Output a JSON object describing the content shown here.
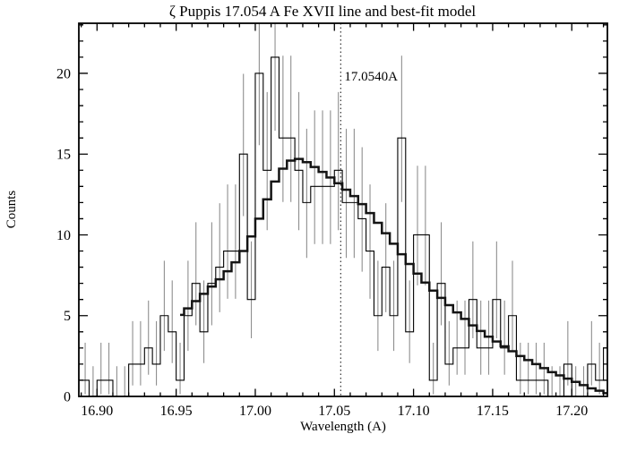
{
  "colors": {
    "background": "#ffffff",
    "axis": "#000000",
    "data_line": "#000000",
    "model_line": "#141414",
    "error_bar": "#8f8f8f",
    "reference_line": "#333333"
  },
  "chart_data": {
    "type": "bar",
    "subtype": "step-histogram-with-model-curve-and-error-bars",
    "title": "ζ Puppis 17.054 A Fe XVII line and best-fit model",
    "xlabel": "Wavelength (A)",
    "ylabel": "Counts",
    "annotation": "17.0540A",
    "rest_wavelength": 17.054,
    "xlim": [
      16.8885,
      17.2225
    ],
    "ylim": [
      0,
      23.1
    ],
    "x_major_ticks": [
      16.9,
      16.95,
      17.0,
      17.05,
      17.1,
      17.15,
      17.2
    ],
    "x_major_tick_labels": [
      "16.90",
      "16.95",
      "17.00",
      "17.05",
      "17.10",
      "17.15",
      "17.20"
    ],
    "x_minor_step": 0.01,
    "y_major_ticks": [
      0,
      5,
      10,
      15,
      20
    ],
    "y_major_tick_labels": [
      "0",
      "5",
      "10",
      "15",
      "20"
    ],
    "y_minor_step": 1,
    "grid": "off",
    "legend": "none",
    "bin_width": 0.005,
    "bins_start": 16.89,
    "counts": [
      1,
      0,
      1,
      1,
      0,
      0,
      2,
      2,
      3,
      2,
      5,
      4,
      1,
      5,
      7,
      4,
      7,
      8,
      9,
      9,
      15,
      6,
      20,
      14,
      21,
      16,
      16,
      14,
      12,
      13,
      13,
      13,
      14,
      12,
      12,
      11,
      9,
      5,
      8,
      5,
      16,
      4,
      10,
      10,
      1,
      7,
      2,
      3,
      3,
      6,
      3,
      3,
      6,
      3,
      5,
      1,
      1,
      1,
      1,
      0,
      0,
      2,
      0,
      0,
      2,
      1,
      3
    ],
    "error_bar_type": "gehrels-poisson",
    "model_start": 16.9525,
    "model_step": 0.005,
    "model_values": [
      5.05,
      5.45,
      5.9,
      6.35,
      6.8,
      7.25,
      7.75,
      8.3,
      9.0,
      9.9,
      11.0,
      12.2,
      13.3,
      14.1,
      14.6,
      14.7,
      14.5,
      14.2,
      13.9,
      13.55,
      13.2,
      12.8,
      12.4,
      11.9,
      11.35,
      10.75,
      10.1,
      9.45,
      8.8,
      8.2,
      7.6,
      7.05,
      6.55,
      6.1,
      5.65,
      5.2,
      4.8,
      4.4,
      4.05,
      3.7,
      3.4,
      3.1,
      2.8,
      2.5,
      2.25,
      2.0,
      1.75,
      1.5,
      1.3,
      1.1,
      0.9,
      0.7,
      0.5,
      0.35,
      0.2
    ]
  }
}
